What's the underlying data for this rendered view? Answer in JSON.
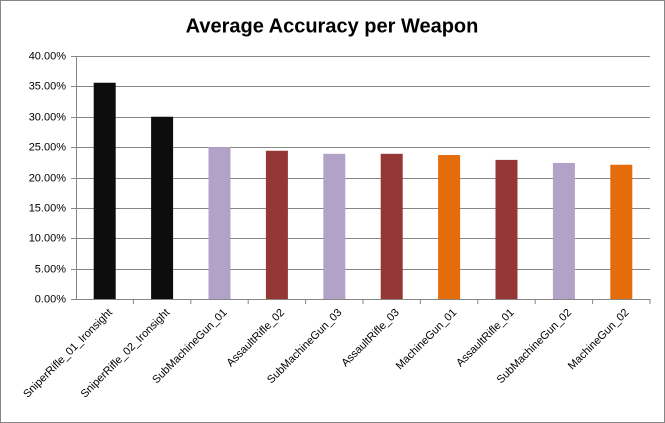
{
  "chart_data": {
    "type": "bar",
    "title": "Average Accuracy per Weapon",
    "categories": [
      "SniperRifle_01_Ironsight",
      "SniperRifle_02_Ironsight",
      "SubMachineGun_01",
      "AssaultRifle_02",
      "SubMachineGun_03",
      "AssaultRifle_03",
      "MachineGun_01",
      "AssaultRifle_01",
      "SubMachineGun_02",
      "MachineGun_02"
    ],
    "values": [
      35.6,
      30.0,
      25.0,
      24.4,
      23.9,
      23.9,
      23.7,
      22.9,
      22.4,
      22.1
    ],
    "colors": [
      "#0d0d0d",
      "#0d0d0d",
      "#b3a2c7",
      "#953735",
      "#b3a2c7",
      "#953735",
      "#e46c0a",
      "#953735",
      "#b3a2c7",
      "#e46c0a"
    ],
    "ylim": [
      0,
      40
    ],
    "yticks": [
      {
        "value": 0,
        "label": "0.00%"
      },
      {
        "value": 5,
        "label": "5.00%"
      },
      {
        "value": 10,
        "label": "10.00%"
      },
      {
        "value": 15,
        "label": "15.00%"
      },
      {
        "value": 20,
        "label": "20.00%"
      },
      {
        "value": 25,
        "label": "25.00%"
      },
      {
        "value": 30,
        "label": "30.00%"
      },
      {
        "value": 35,
        "label": "35.00%"
      },
      {
        "value": 40,
        "label": "40.00%"
      }
    ],
    "grid": true
  }
}
